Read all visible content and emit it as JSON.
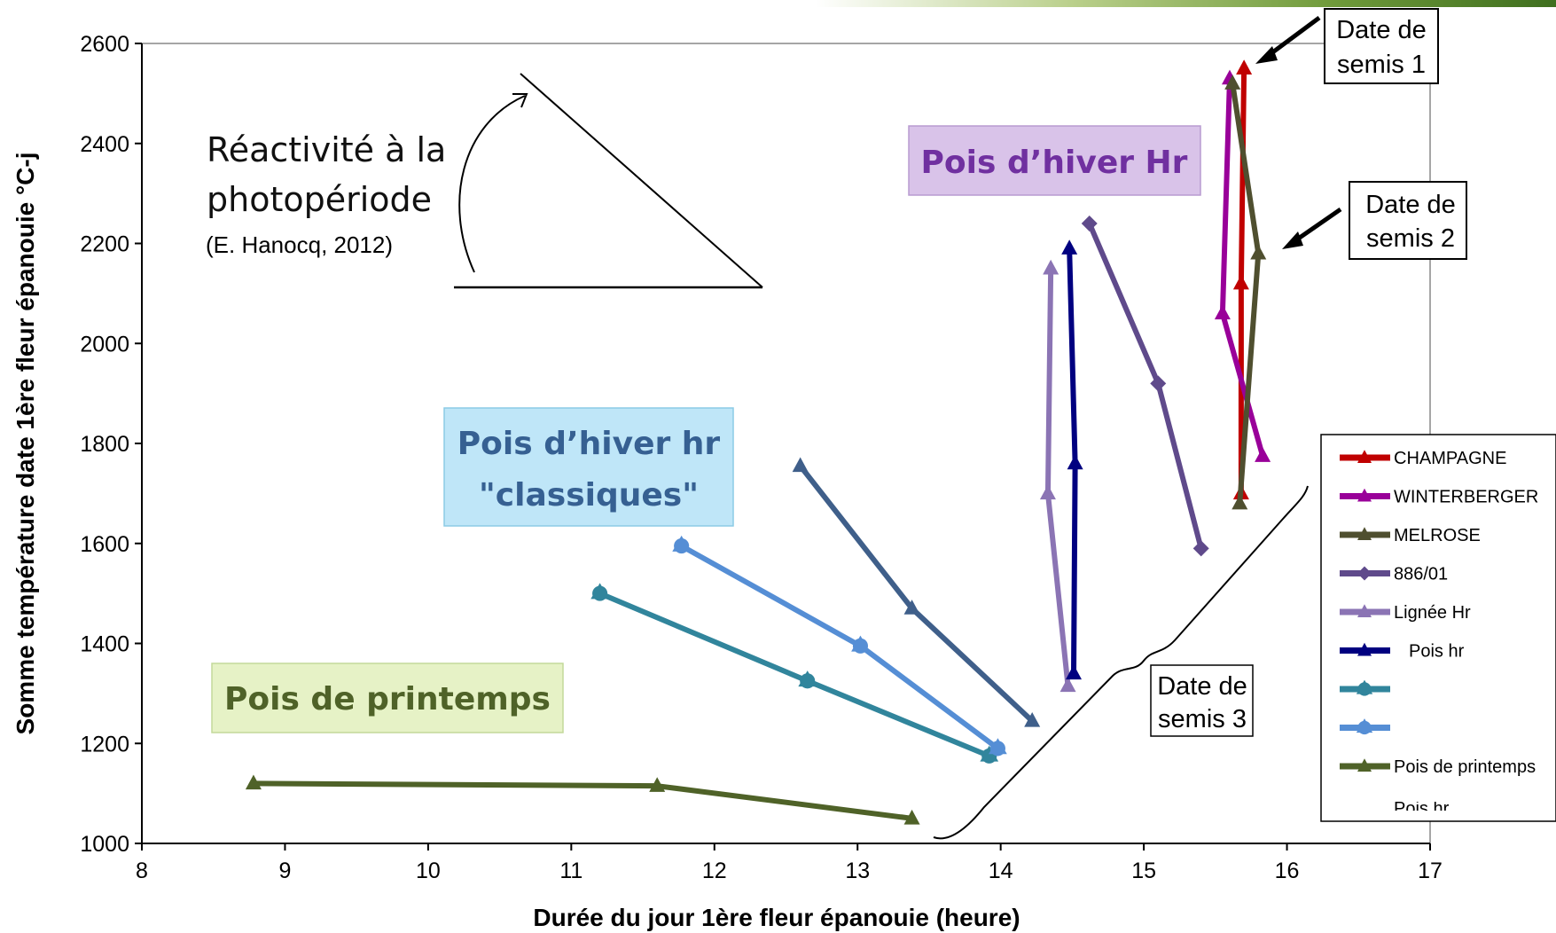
{
  "chart_data": {
    "type": "line",
    "title": "",
    "xlabel": "Durée du jour 1ère fleur épanouie (heure)",
    "ylabel": "Somme température date 1ère fleur épanouie °C-j",
    "xlim": [
      8,
      17
    ],
    "ylim": [
      1000,
      2600
    ],
    "xticks": [
      "8",
      "9",
      "10",
      "11",
      "12",
      "13",
      "14",
      "15",
      "16",
      "17"
    ],
    "yticks": [
      "1000",
      "1200",
      "1400",
      "1600",
      "1800",
      "2000",
      "2200",
      "2400",
      "2600"
    ],
    "grid": false,
    "legend_position": "right",
    "series": [
      {
        "name": "CHAMPAGNE",
        "color": "#c00000",
        "marker": "triangle",
        "x": [
          15.7,
          15.68,
          15.68
        ],
        "y": [
          2550,
          2120,
          1700
        ]
      },
      {
        "name": "WINTERBERGER",
        "color": "#990099",
        "marker": "triangle",
        "x": [
          15.6,
          15.55,
          15.83
        ],
        "y": [
          2530,
          2060,
          1775
        ]
      },
      {
        "name": "MELROSE",
        "color": "#4f4f2f",
        "marker": "triangle",
        "x": [
          15.62,
          15.8,
          15.67
        ],
        "y": [
          2520,
          2180,
          1680
        ]
      },
      {
        "name": "886/01",
        "color": "#5f4a8b",
        "marker": "diamond",
        "x": [
          14.62,
          15.1,
          15.4
        ],
        "y": [
          2240,
          1920,
          1590
        ]
      },
      {
        "name": "Lignée Hr",
        "color": "#8b74b4",
        "marker": "triangle",
        "x": [
          14.35,
          14.33,
          14.47
        ],
        "y": [
          2150,
          1700,
          1315
        ]
      },
      {
        "name": "Pois hr",
        "color": "#000080",
        "marker": "triangle",
        "x": [
          14.48,
          14.52,
          14.51
        ],
        "y": [
          2190,
          1760,
          1340
        ]
      },
      {
        "name": "",
        "color": "#31859c",
        "marker": "circle",
        "x": [
          11.2,
          12.65,
          13.92
        ],
        "y": [
          1500,
          1325,
          1175
        ]
      },
      {
        "name": "",
        "color": "#558ed5",
        "marker": "circle",
        "x": [
          11.77,
          13.02,
          13.98
        ],
        "y": [
          1595,
          1395,
          1190
        ]
      },
      {
        "name": "",
        "color": "#3f5f8a",
        "marker": "triangle",
        "x": [
          12.6,
          13.38,
          14.22
        ],
        "y": [
          1755,
          1470,
          1245
        ]
      },
      {
        "name": "Pois de printemps",
        "color": "#4f6228",
        "marker": "triangle",
        "x": [
          8.78,
          11.6,
          13.38
        ],
        "y": [
          1120,
          1115,
          1050
        ]
      }
    ]
  },
  "labels": {
    "winter_hr": "Pois d’hiver Hr",
    "classic_line1": "Pois d’hiver hr",
    "classic_line2": "\"classiques\"",
    "spring": "Pois de printemps",
    "reactivity_line1": "Réactivité à la",
    "reactivity_line2": "photopériode",
    "reactivity_ref": "(E. Hanocq, 2012)",
    "sowing1_line1": "Date de",
    "sowing1_line2": "semis 1",
    "sowing2_line1": "Date de",
    "sowing2_line2": "semis 2",
    "sowing3_line1": "Date de",
    "sowing3_line2": "semis 3",
    "legend_cutoff": "Pois hr"
  }
}
